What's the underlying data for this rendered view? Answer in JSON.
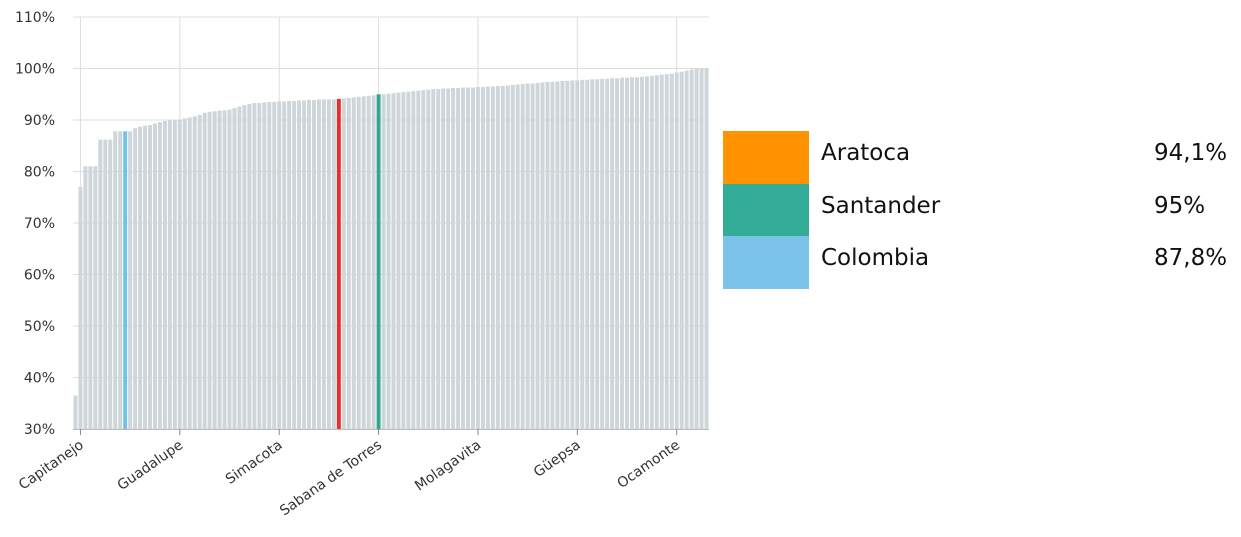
{
  "colors": {
    "bar_default": "#cfd6d9",
    "highlight_aratoca": "#ee2b2b",
    "highlight_santander": "#30a694",
    "highlight_colombia": "#6ec3e8",
    "legend_aratoca": "#ff9400",
    "legend_santander": "#33ad97",
    "legend_colombia": "#7cc3ea",
    "grid": "#dddddd"
  },
  "legend": [
    {
      "name": "Aratoca",
      "value": "94,1%",
      "color": "#ff9400"
    },
    {
      "name": "Santander",
      "value": "95%",
      "color": "#33ad97"
    },
    {
      "name": "Colombia",
      "value": "87,8%",
      "color": "#7cc3ea"
    }
  ],
  "chart_data": {
    "type": "bar",
    "ylim": [
      30,
      110
    ],
    "y_ticks": [
      "30%",
      "40%",
      "50%",
      "60%",
      "70%",
      "80%",
      "90%",
      "100%",
      "110%"
    ],
    "y_tick_values": [
      30,
      40,
      50,
      60,
      70,
      80,
      90,
      100,
      110
    ],
    "grid": true,
    "x_tick_labels": [
      {
        "label": "Capitanejo",
        "index": 1
      },
      {
        "label": "Guadalupe",
        "index": 21
      },
      {
        "label": "Simacota",
        "index": 41
      },
      {
        "label": "Sabana de Torres",
        "index": 61
      },
      {
        "label": "Molagavita",
        "index": 81
      },
      {
        "label": "Güepsa",
        "index": 101
      },
      {
        "label": "Ocamonte",
        "index": 121
      }
    ],
    "highlights": [
      {
        "name": "Colombia",
        "index": 10,
        "value": 87.8
      },
      {
        "name": "Aratoca",
        "index": 53,
        "value": 94.1
      },
      {
        "name": "Santander",
        "index": 61,
        "value": 95
      }
    ],
    "values": [
      36.5,
      77.0,
      81.0,
      81.0,
      81.0,
      86.2,
      86.2,
      86.2,
      87.8,
      87.8,
      87.8,
      87.8,
      88.4,
      88.7,
      88.9,
      89.0,
      89.3,
      89.6,
      89.8,
      89.9,
      90.0,
      90.1,
      90.3,
      90.5,
      90.7,
      91.0,
      91.4,
      91.6,
      91.7,
      91.8,
      91.9,
      92.0,
      92.3,
      92.6,
      92.9,
      93.1,
      93.3,
      93.3,
      93.4,
      93.5,
      93.5,
      93.6,
      93.6,
      93.7,
      93.7,
      93.8,
      93.8,
      93.9,
      93.9,
      94.0,
      94.0,
      94.0,
      94.0,
      94.1,
      94.2,
      94.3,
      94.4,
      94.5,
      94.6,
      94.7,
      94.8,
      95.0,
      95.0,
      95.1,
      95.2,
      95.3,
      95.4,
      95.5,
      95.6,
      95.7,
      95.8,
      95.9,
      96.0,
      96.0,
      96.1,
      96.1,
      96.2,
      96.2,
      96.3,
      96.3,
      96.3,
      96.4,
      96.4,
      96.5,
      96.5,
      96.6,
      96.6,
      96.7,
      96.8,
      96.9,
      97.0,
      97.1,
      97.1,
      97.2,
      97.3,
      97.4,
      97.4,
      97.5,
      97.6,
      97.6,
      97.7,
      97.7,
      97.8,
      97.8,
      97.9,
      97.9,
      98.0,
      98.0,
      98.1,
      98.1,
      98.2,
      98.2,
      98.3,
      98.3,
      98.4,
      98.5,
      98.6,
      98.7,
      98.8,
      98.9,
      99.0,
      99.2,
      99.4,
      99.6,
      99.8,
      99.9,
      100.0,
      100.0
    ]
  }
}
